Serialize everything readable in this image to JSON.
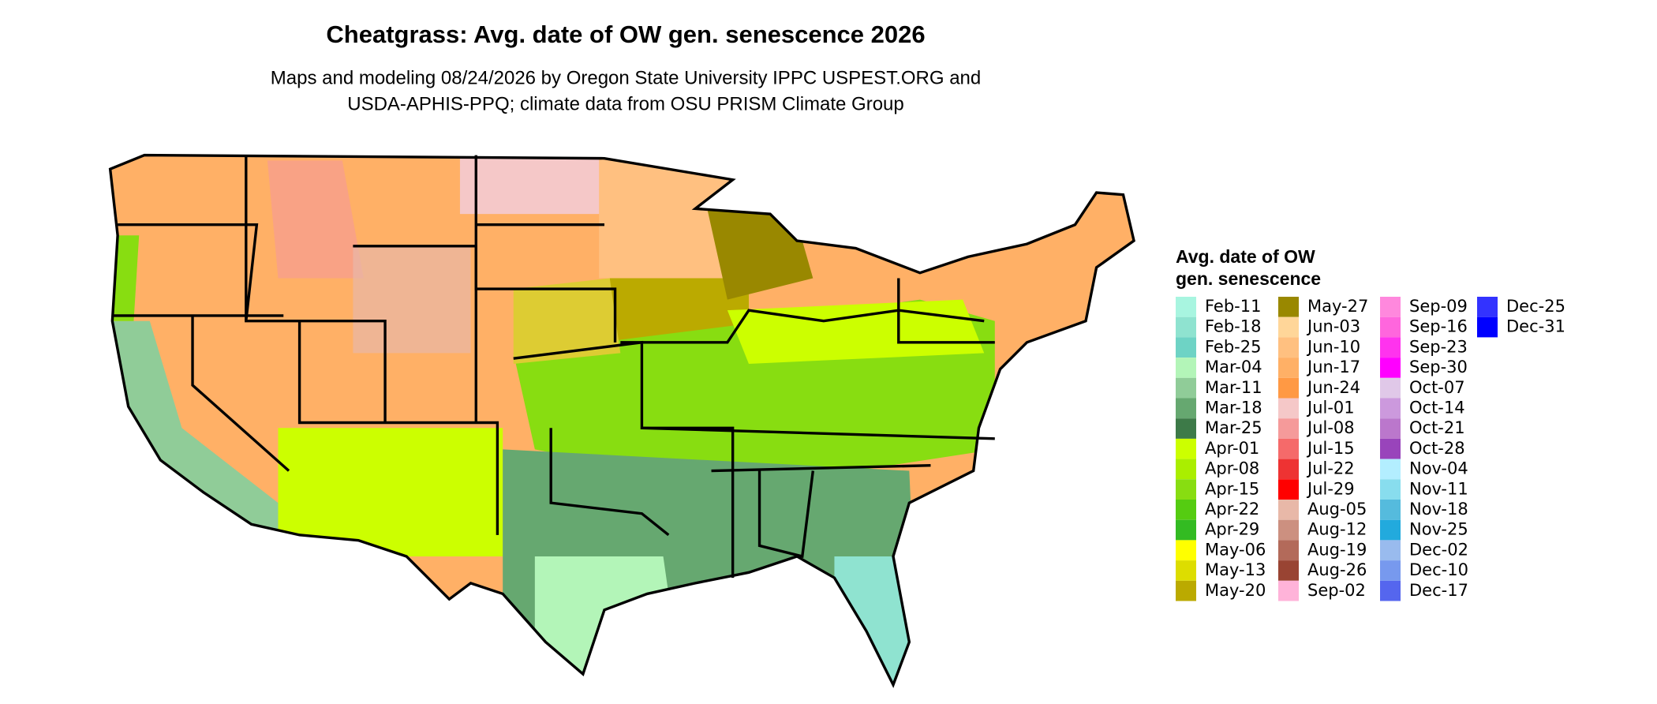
{
  "header": {
    "title": "Cheatgrass: Avg. date of OW gen. senescence 2026",
    "subtitle": [
      "Maps and modeling 08/24/2026 by Oregon State University IPPC USPEST.ORG and",
      "USDA-APHIS-PPQ; climate data from OSU PRISM Climate Group"
    ]
  },
  "legend": {
    "title": [
      "Avg. date of OW",
      "gen. senescence"
    ],
    "items": [
      {
        "label": "Feb-11",
        "color": "#a8f5e0"
      },
      {
        "label": "Feb-18",
        "color": "#8fe3d0"
      },
      {
        "label": "Feb-25",
        "color": "#6ed3c5"
      },
      {
        "label": "Mar-04",
        "color": "#b3f5b8"
      },
      {
        "label": "Mar-11",
        "color": "#90cc98"
      },
      {
        "label": "Mar-18",
        "color": "#66a870"
      },
      {
        "label": "Mar-25",
        "color": "#3d7a48"
      },
      {
        "label": "Apr-01",
        "color": "#ccff00"
      },
      {
        "label": "Apr-08",
        "color": "#aaee00"
      },
      {
        "label": "Apr-15",
        "color": "#88dd11"
      },
      {
        "label": "Apr-22",
        "color": "#55cc11"
      },
      {
        "label": "Apr-29",
        "color": "#33bb22"
      },
      {
        "label": "May-06",
        "color": "#ffff00"
      },
      {
        "label": "May-13",
        "color": "#dddd00"
      },
      {
        "label": "May-20",
        "color": "#bbaa00"
      },
      {
        "label": "May-27",
        "color": "#998800"
      },
      {
        "label": "Jun-03",
        "color": "#ffd699"
      },
      {
        "label": "Jun-10",
        "color": "#ffc080"
      },
      {
        "label": "Jun-17",
        "color": "#ffb066"
      },
      {
        "label": "Jun-24",
        "color": "#ff9944"
      },
      {
        "label": "Jul-01",
        "color": "#f5c8c8"
      },
      {
        "label": "Jul-08",
        "color": "#f59a9a"
      },
      {
        "label": "Jul-15",
        "color": "#f56a6a"
      },
      {
        "label": "Jul-22",
        "color": "#ee3333"
      },
      {
        "label": "Jul-29",
        "color": "#ff0000"
      },
      {
        "label": "Aug-05",
        "color": "#e8b8a8"
      },
      {
        "label": "Aug-12",
        "color": "#cc9080"
      },
      {
        "label": "Aug-19",
        "color": "#b36a5a"
      },
      {
        "label": "Aug-26",
        "color": "#994433"
      },
      {
        "label": "Sep-02",
        "color": "#ffb3d9"
      },
      {
        "label": "Sep-09",
        "color": "#ff88dd"
      },
      {
        "label": "Sep-16",
        "color": "#ff66dd"
      },
      {
        "label": "Sep-23",
        "color": "#ff33ee"
      },
      {
        "label": "Sep-30",
        "color": "#ff00ff"
      },
      {
        "label": "Oct-07",
        "color": "#e0c8e8"
      },
      {
        "label": "Oct-14",
        "color": "#cc99dd"
      },
      {
        "label": "Oct-21",
        "color": "#bb77cc"
      },
      {
        "label": "Oct-28",
        "color": "#9944bb"
      },
      {
        "label": "Nov-04",
        "color": "#b3eeff"
      },
      {
        "label": "Nov-11",
        "color": "#88ddee"
      },
      {
        "label": "Nov-18",
        "color": "#55bbdd"
      },
      {
        "label": "Nov-25",
        "color": "#22aadd"
      },
      {
        "label": "Dec-02",
        "color": "#99bbee"
      },
      {
        "label": "Dec-10",
        "color": "#7799ee"
      },
      {
        "label": "Dec-17",
        "color": "#5566ee"
      },
      {
        "label": "Dec-25",
        "color": "#3333ff"
      },
      {
        "label": "Dec-31",
        "color": "#0000ff"
      }
    ]
  }
}
